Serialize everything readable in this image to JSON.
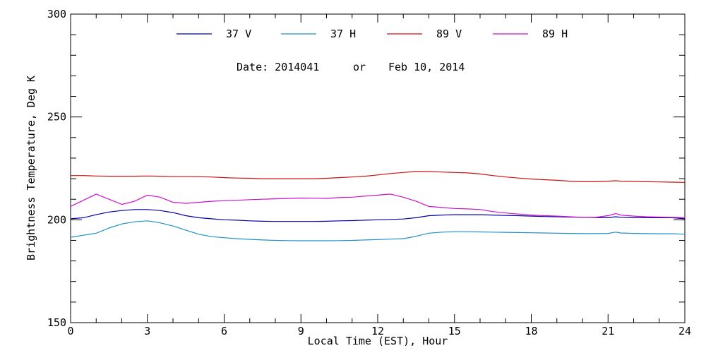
{
  "chart_data": {
    "type": "line",
    "xlabel": "Local Time (EST), Hour",
    "ylabel": "Brightness Temperature, Deg K",
    "xlim": [
      0,
      24
    ],
    "ylim": [
      150,
      300
    ],
    "xticks": [
      0,
      3,
      6,
      9,
      12,
      15,
      18,
      21,
      24
    ],
    "yticks": [
      150,
      200,
      250,
      300
    ],
    "x_minor_step": 1,
    "y_minor_step": 10,
    "grid": false,
    "legend_position": "top",
    "annotation": {
      "date_label": "Date: 2014041",
      "or_label": "or",
      "date_text": "Feb 10, 2014"
    },
    "x": [
      0,
      0.5,
      1,
      1.5,
      2,
      2.5,
      3,
      3.5,
      4,
      4.5,
      5,
      5.5,
      6,
      6.5,
      7,
      7.5,
      8,
      8.5,
      9,
      9.5,
      10,
      10.5,
      11,
      11.5,
      12,
      12.5,
      13,
      13.5,
      14,
      14.5,
      15,
      15.5,
      16,
      16.5,
      17,
      17.5,
      18,
      18.5,
      19,
      19.5,
      20,
      20.5,
      21,
      21.3,
      21.5,
      22,
      22.5,
      23,
      23.5,
      24
    ],
    "series": [
      {
        "name": "37 V",
        "color": "#0000aa",
        "values": [
          200.5,
          201,
          202.5,
          203.8,
          204.5,
          205,
          205,
          204.5,
          203.5,
          202,
          201,
          200.5,
          200,
          199.8,
          199.5,
          199.3,
          199.2,
          199.2,
          199.2,
          199.2,
          199.3,
          199.5,
          199.6,
          199.8,
          200,
          200.2,
          200.4,
          201,
          202,
          202.3,
          202.5,
          202.5,
          202.5,
          202.3,
          202.1,
          202,
          201.8,
          201.6,
          201.5,
          201.3,
          201.2,
          201.1,
          201,
          201.5,
          201.2,
          201,
          201,
          201,
          201,
          200.5
        ]
      },
      {
        "name": "37 H",
        "color": "#1e90c8",
        "values": [
          191.5,
          192.5,
          193.5,
          196,
          198,
          199,
          199.5,
          198.5,
          197,
          195,
          193,
          191.8,
          191.3,
          190.8,
          190.5,
          190.2,
          190,
          189.9,
          189.8,
          189.8,
          189.8,
          189.9,
          190,
          190.2,
          190.4,
          190.6,
          190.8,
          192,
          193.5,
          194,
          194.2,
          194.2,
          194.1,
          194,
          193.9,
          193.8,
          193.7,
          193.6,
          193.5,
          193.4,
          193.3,
          193.3,
          193.4,
          194,
          193.6,
          193.4,
          193.3,
          193.2,
          193.2,
          193
        ]
      },
      {
        "name": "89 V",
        "color": "#cc1111",
        "values": [
          221.5,
          221.5,
          221.3,
          221.2,
          221.2,
          221.2,
          221.3,
          221.2,
          221,
          221,
          221,
          220.8,
          220.5,
          220.3,
          220.2,
          220,
          220,
          220,
          220,
          220,
          220.2,
          220.5,
          220.8,
          221.2,
          221.8,
          222.5,
          223,
          223.5,
          223.5,
          223.2,
          223,
          222.8,
          222.3,
          221.5,
          220.8,
          220.3,
          219.8,
          219.5,
          219.2,
          218.8,
          218.5,
          218.5,
          218.8,
          219,
          218.8,
          218.7,
          218.5,
          218.4,
          218.3,
          218.2
        ]
      },
      {
        "name": "89 H",
        "color": "#cc11cc",
        "values": [
          206.5,
          209.5,
          212.5,
          210,
          207.5,
          209,
          212,
          211,
          208.5,
          208,
          208.5,
          209,
          209.3,
          209.5,
          209.8,
          210,
          210.2,
          210.4,
          210.6,
          210.5,
          210.4,
          210.8,
          211,
          211.5,
          212,
          212.5,
          211,
          209,
          206.5,
          206,
          205.5,
          205.3,
          205,
          204,
          203.3,
          202.8,
          202.3,
          202,
          201.8,
          201.5,
          201.2,
          201.2,
          202,
          203,
          202.3,
          201.8,
          201.5,
          201.3,
          201.2,
          201
        ]
      }
    ]
  }
}
